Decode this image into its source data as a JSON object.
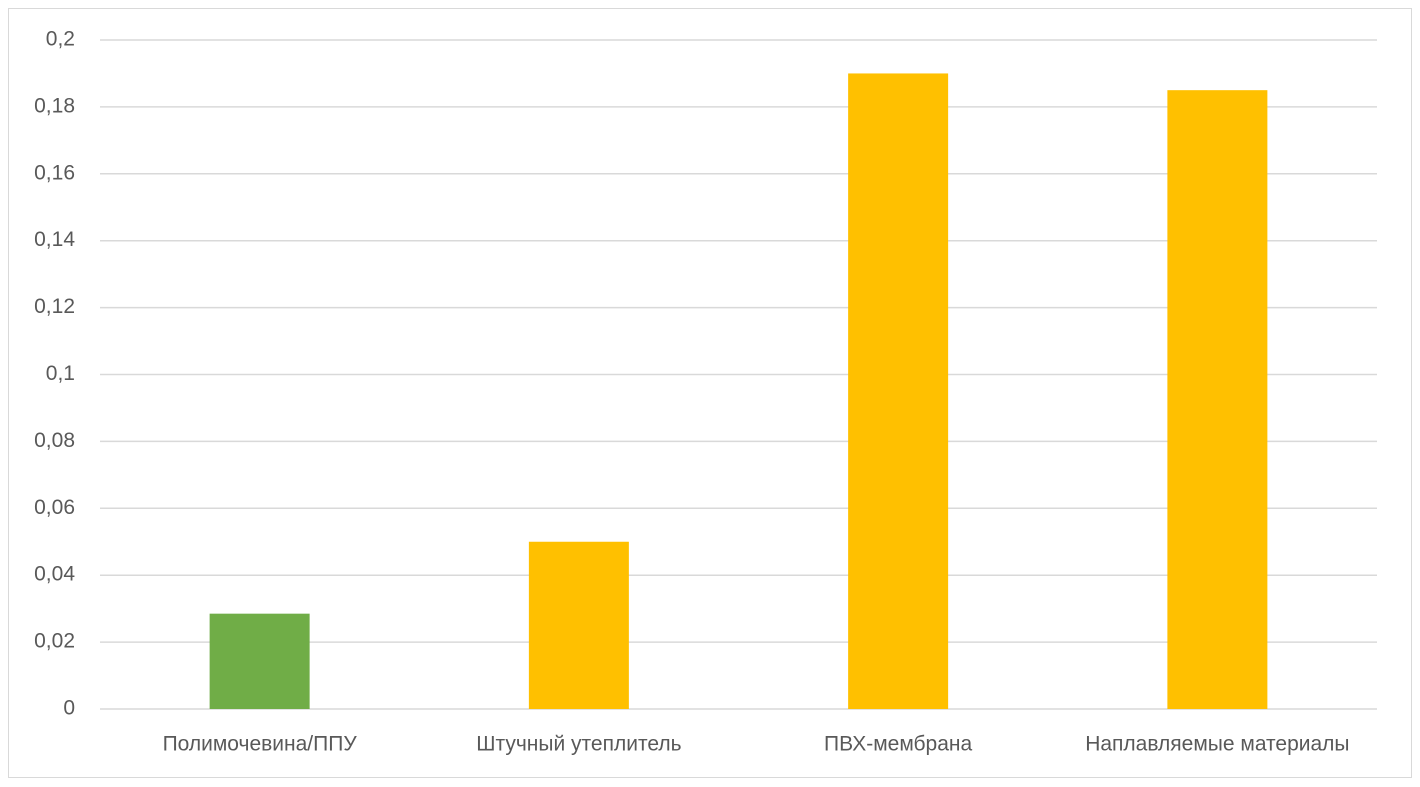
{
  "chart_data": {
    "type": "bar",
    "categories": [
      "Полимочевина/ППУ",
      "Штучный утеплитель",
      "ПВХ-мембрана",
      "Наплавляемые материалы"
    ],
    "values": [
      0.0285,
      0.05,
      0.19,
      0.185
    ],
    "colors": [
      "#70ad47",
      "#ffc000",
      "#ffc000",
      "#ffc000"
    ],
    "ylim": [
      0,
      0.2
    ],
    "yticks": [
      0,
      {
        "value": 0.02,
        "label": "0,02"
      },
      {
        "value": 0.04,
        "label": "0,04"
      },
      {
        "value": 0.06,
        "label": "0,06"
      },
      {
        "value": 0.08,
        "label": "0,08"
      },
      {
        "value": 0.1,
        "label": "0,1"
      },
      {
        "value": 0.12,
        "label": "0,12"
      },
      {
        "value": 0.14,
        "label": "0,14"
      },
      {
        "value": 0.16,
        "label": "0,16"
      },
      {
        "value": 0.18,
        "label": "0,18"
      },
      {
        "value": 0.2,
        "label": "0,2"
      }
    ],
    "grid": true
  }
}
